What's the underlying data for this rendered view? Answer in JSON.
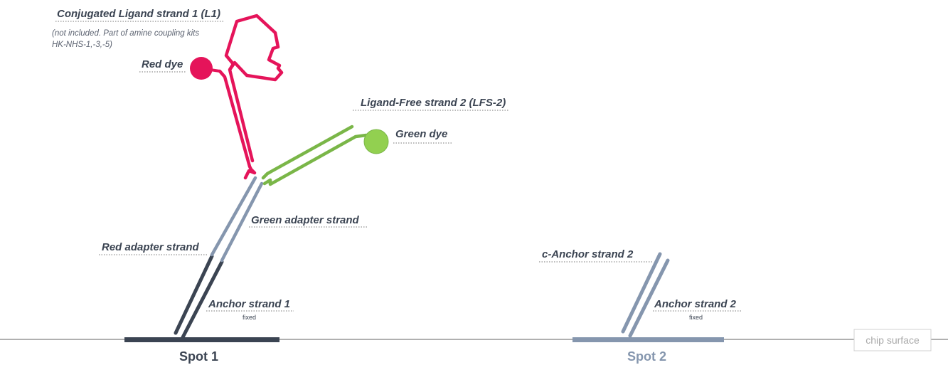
{
  "labels": {
    "ligand1": "Conjugated Ligand strand 1 (L1)",
    "ligand1_note_line1": "(not included. Part of amine coupling kits",
    "ligand1_note_line2": "HK-NHS-1,-3,-5)",
    "red_dye": "Red dye",
    "lfs2": "Ligand-Free strand 2 (LFS-2)",
    "green_dye": "Green dye",
    "green_adapter": "Green adapter strand",
    "red_adapter": "Red adapter strand",
    "anchor1": "Anchor strand 1",
    "anchor1_sub": "fixed",
    "c_anchor2": "c-Anchor strand 2",
    "anchor2": "Anchor strand 2",
    "anchor2_sub": "fixed",
    "chip_surface": "chip surface",
    "spot1": "Spot 1",
    "spot2": "Spot 2"
  },
  "colors": {
    "red": "#e5145a",
    "green": "#7ab648",
    "green_dye_fill": "#92d050",
    "adapter_gray": "#8596ae",
    "anchor_dark": "#3b4452",
    "chip_line": "#b0b0b0",
    "spot2_text": "#8596ae"
  }
}
